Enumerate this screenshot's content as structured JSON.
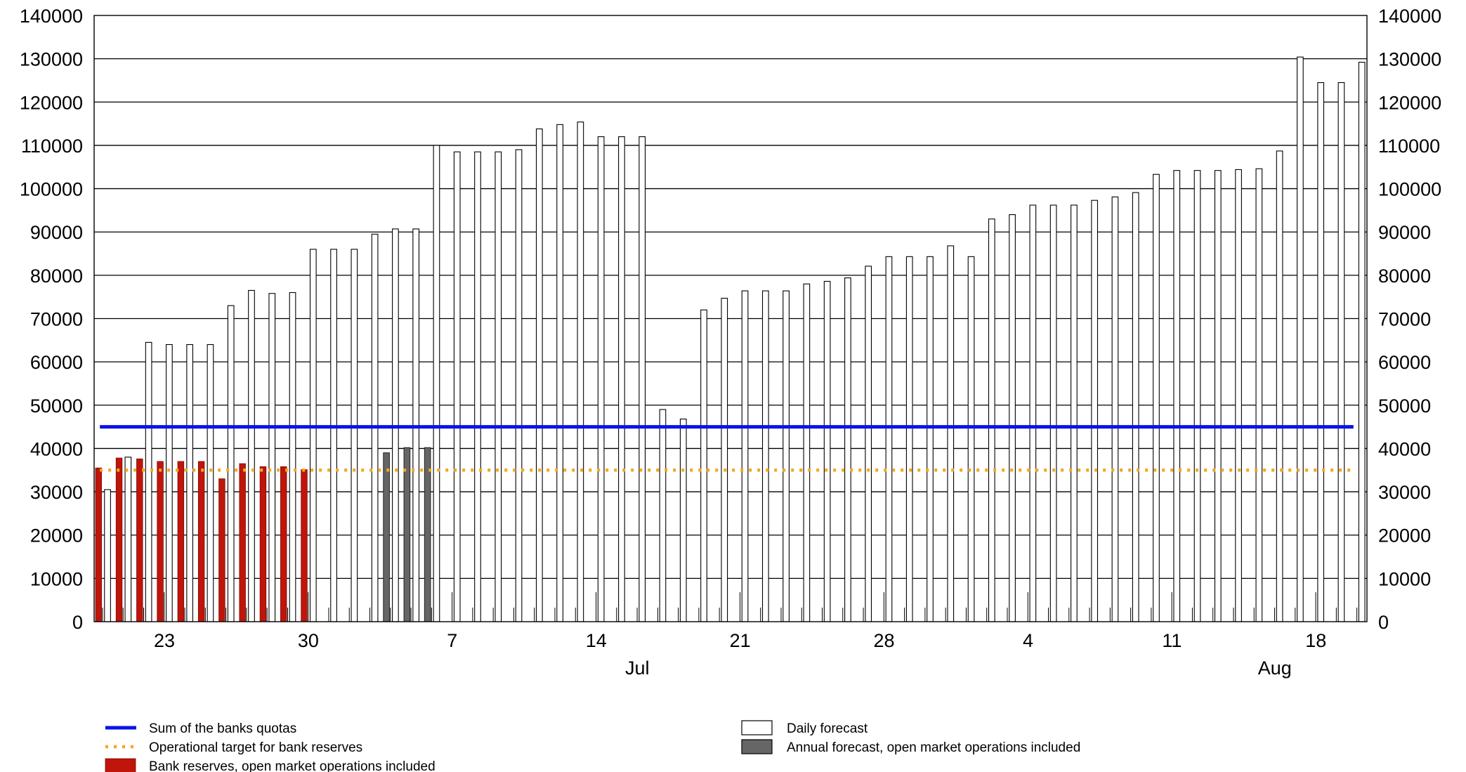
{
  "chart_data": {
    "type": "bar",
    "ylim": [
      0,
      140000
    ],
    "yticks": [
      0,
      10000,
      20000,
      30000,
      40000,
      50000,
      60000,
      70000,
      80000,
      90000,
      100000,
      110000,
      120000,
      130000,
      140000
    ],
    "grid": true,
    "x_start": "2023-06-20",
    "x_end": "2023-08-20",
    "x_day_labels": [
      {
        "date": "2023-06-23",
        "label": "23"
      },
      {
        "date": "2023-06-30",
        "label": "30"
      },
      {
        "date": "2023-07-07",
        "label": "7"
      },
      {
        "date": "2023-07-14",
        "label": "14"
      },
      {
        "date": "2023-07-21",
        "label": "21"
      },
      {
        "date": "2023-07-28",
        "label": "28"
      },
      {
        "date": "2023-08-04",
        "label": "4"
      },
      {
        "date": "2023-08-11",
        "label": "11"
      },
      {
        "date": "2023-08-18",
        "label": "18"
      }
    ],
    "x_month_labels": [
      {
        "date": "2023-07-16",
        "label": "Jul"
      },
      {
        "date": "2023-08-16",
        "label": "Aug"
      }
    ],
    "series": [
      {
        "name": "Daily forecast",
        "kind": "bar",
        "color": "#ffffff",
        "points": [
          {
            "date": "2023-06-20",
            "value": 30500
          },
          {
            "date": "2023-06-21",
            "value": 38000
          },
          {
            "date": "2023-06-22",
            "value": 64500
          },
          {
            "date": "2023-06-23",
            "value": 64000
          },
          {
            "date": "2023-06-24",
            "value": 64000
          },
          {
            "date": "2023-06-25",
            "value": 64000
          },
          {
            "date": "2023-06-26",
            "value": 73000
          },
          {
            "date": "2023-06-27",
            "value": 76500
          },
          {
            "date": "2023-06-28",
            "value": 75800
          },
          {
            "date": "2023-06-29",
            "value": 76000
          },
          {
            "date": "2023-06-30",
            "value": 86000
          },
          {
            "date": "2023-07-01",
            "value": 86000
          },
          {
            "date": "2023-07-02",
            "value": 86000
          },
          {
            "date": "2023-07-03",
            "value": 89500
          },
          {
            "date": "2023-07-04",
            "value": 90700
          },
          {
            "date": "2023-07-05",
            "value": 90700
          },
          {
            "date": "2023-07-06",
            "value": 110000
          },
          {
            "date": "2023-07-07",
            "value": 108500
          },
          {
            "date": "2023-07-08",
            "value": 108500
          },
          {
            "date": "2023-07-09",
            "value": 108500
          },
          {
            "date": "2023-07-10",
            "value": 109000
          },
          {
            "date": "2023-07-11",
            "value": 113800
          },
          {
            "date": "2023-07-12",
            "value": 114800
          },
          {
            "date": "2023-07-13",
            "value": 115400
          },
          {
            "date": "2023-07-14",
            "value": 112000
          },
          {
            "date": "2023-07-15",
            "value": 112000
          },
          {
            "date": "2023-07-16",
            "value": 112000
          },
          {
            "date": "2023-07-17",
            "value": 49000
          },
          {
            "date": "2023-07-18",
            "value": 46800
          },
          {
            "date": "2023-07-19",
            "value": 72000
          },
          {
            "date": "2023-07-20",
            "value": 74700
          },
          {
            "date": "2023-07-21",
            "value": 76400
          },
          {
            "date": "2023-07-22",
            "value": 76400
          },
          {
            "date": "2023-07-23",
            "value": 76400
          },
          {
            "date": "2023-07-24",
            "value": 78000
          },
          {
            "date": "2023-07-25",
            "value": 78600
          },
          {
            "date": "2023-07-26",
            "value": 79400
          },
          {
            "date": "2023-07-27",
            "value": 82100
          },
          {
            "date": "2023-07-28",
            "value": 84300
          },
          {
            "date": "2023-07-29",
            "value": 84300
          },
          {
            "date": "2023-07-30",
            "value": 84300
          },
          {
            "date": "2023-07-31",
            "value": 86800
          },
          {
            "date": "2023-08-01",
            "value": 84300
          },
          {
            "date": "2023-08-02",
            "value": 93000
          },
          {
            "date": "2023-08-03",
            "value": 94000
          },
          {
            "date": "2023-08-04",
            "value": 96200
          },
          {
            "date": "2023-08-05",
            "value": 96200
          },
          {
            "date": "2023-08-06",
            "value": 96200
          },
          {
            "date": "2023-08-07",
            "value": 97300
          },
          {
            "date": "2023-08-08",
            "value": 98100
          },
          {
            "date": "2023-08-09",
            "value": 99100
          },
          {
            "date": "2023-08-10",
            "value": 103300
          },
          {
            "date": "2023-08-11",
            "value": 104200
          },
          {
            "date": "2023-08-12",
            "value": 104200
          },
          {
            "date": "2023-08-13",
            "value": 104200
          },
          {
            "date": "2023-08-14",
            "value": 104400
          },
          {
            "date": "2023-08-15",
            "value": 104600
          },
          {
            "date": "2023-08-16",
            "value": 108700
          },
          {
            "date": "2023-08-17",
            "value": 130400
          },
          {
            "date": "2023-08-18",
            "value": 124500
          },
          {
            "date": "2023-08-19",
            "value": 124500
          },
          {
            "date": "2023-08-20",
            "value": 129200
          }
        ]
      },
      {
        "name": "Bank reserves, open market operations included",
        "kind": "bar",
        "color": "#c0150a",
        "points": [
          {
            "date": "2023-06-20",
            "value": 35500
          },
          {
            "date": "2023-06-21",
            "value": 37800
          },
          {
            "date": "2023-06-22",
            "value": 37600
          },
          {
            "date": "2023-06-23",
            "value": 37000
          },
          {
            "date": "2023-06-24",
            "value": 37000
          },
          {
            "date": "2023-06-25",
            "value": 37000
          },
          {
            "date": "2023-06-26",
            "value": 33000
          },
          {
            "date": "2023-06-27",
            "value": 36500
          },
          {
            "date": "2023-06-28",
            "value": 35800
          },
          {
            "date": "2023-06-29",
            "value": 35800
          },
          {
            "date": "2023-06-30",
            "value": 35100
          }
        ]
      },
      {
        "name": "Annual forecast, open market operations included",
        "kind": "bar",
        "color": "#666666",
        "points": [
          {
            "date": "2023-07-04",
            "value": 39000
          },
          {
            "date": "2023-07-05",
            "value": 40200
          },
          {
            "date": "2023-07-06",
            "value": 40200
          }
        ]
      },
      {
        "name": "Sum of the banks quotas",
        "kind": "line",
        "style": "solid",
        "color": "#0a14e6",
        "value": 45000
      },
      {
        "name": "Operational target for bank reserves",
        "kind": "line",
        "style": "dotted",
        "color": "#f5a623",
        "value": 35000
      }
    ],
    "legend_placement": "bottom",
    "legend": {
      "left": [
        {
          "label": "Sum of the banks quotas",
          "swatch": "solid-line",
          "color": "#0a14e6"
        },
        {
          "label": "Operational target for bank reserves",
          "swatch": "dotted-line",
          "color": "#f5a623"
        },
        {
          "label": "Bank reserves, open market operations included",
          "swatch": "box",
          "color": "#c0150a"
        }
      ],
      "right": [
        {
          "label": "Daily forecast",
          "swatch": "box",
          "color": "#ffffff"
        },
        {
          "label": "Annual forecast, open market operations included",
          "swatch": "box",
          "color": "#666666"
        }
      ]
    }
  }
}
